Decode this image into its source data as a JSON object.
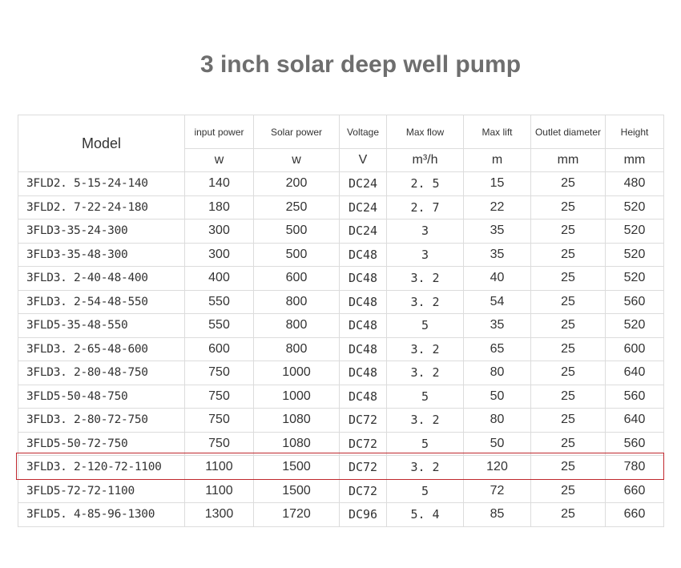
{
  "title": "3 inch solar deep well pump",
  "table": {
    "model_header": "Model",
    "headers": [
      "input power",
      "Solar power",
      "Voltage",
      "Max flow",
      "Max lift",
      "Outlet diameter",
      "Height"
    ],
    "units": [
      "w",
      "w",
      "V",
      "m³/h",
      "m",
      "mm",
      "mm"
    ],
    "rows": [
      [
        "3FLD2. 5-15-24-140",
        "140",
        "200",
        "DC24",
        "2. 5",
        "15",
        "25",
        "480"
      ],
      [
        "3FLD2. 7-22-24-180",
        "180",
        "250",
        "DC24",
        "2. 7",
        "22",
        "25",
        "520"
      ],
      [
        "3FLD3-35-24-300",
        "300",
        "500",
        "DC24",
        "3",
        "35",
        "25",
        "520"
      ],
      [
        "3FLD3-35-48-300",
        "300",
        "500",
        "DC48",
        "3",
        "35",
        "25",
        "520"
      ],
      [
        "3FLD3. 2-40-48-400",
        "400",
        "600",
        "DC48",
        "3. 2",
        "40",
        "25",
        "520"
      ],
      [
        "3FLD3. 2-54-48-550",
        "550",
        "800",
        "DC48",
        "3. 2",
        "54",
        "25",
        "560"
      ],
      [
        "3FLD5-35-48-550",
        "550",
        "800",
        "DC48",
        "5",
        "35",
        "25",
        "520"
      ],
      [
        "3FLD3. 2-65-48-600",
        "600",
        "800",
        "DC48",
        "3. 2",
        "65",
        "25",
        "600"
      ],
      [
        "3FLD3. 2-80-48-750",
        "750",
        "1000",
        "DC48",
        "3. 2",
        "80",
        "25",
        "640"
      ],
      [
        "3FLD5-50-48-750",
        "750",
        "1000",
        "DC48",
        "5",
        "50",
        "25",
        "560"
      ],
      [
        "3FLD3. 2-80-72-750",
        "750",
        "1080",
        "DC72",
        "3. 2",
        "80",
        "25",
        "640"
      ],
      [
        "3FLD5-50-72-750",
        "750",
        "1080",
        "DC72",
        "5",
        "50",
        "25",
        "560"
      ],
      [
        "3FLD3. 2-120-72-1100",
        "1100",
        "1500",
        "DC72",
        "3. 2",
        "120",
        "25",
        "780"
      ],
      [
        "3FLD5-72-72-1100",
        "1100",
        "1500",
        "DC72",
        "5",
        "72",
        "25",
        "660"
      ],
      [
        "3FLD5. 4-85-96-1300",
        "1300",
        "1720",
        "DC96",
        "5. 4",
        "85",
        "25",
        "660"
      ]
    ]
  }
}
